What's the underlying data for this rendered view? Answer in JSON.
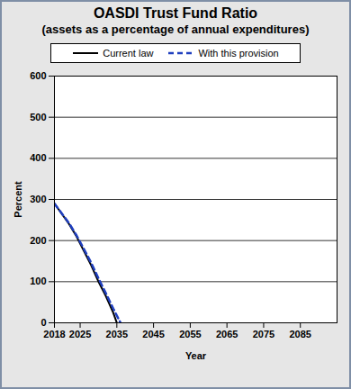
{
  "chart_data": {
    "type": "line",
    "title": "OASDI Trust Fund Ratio",
    "subtitle": "(assets as a percentage of annual expenditures)",
    "x_label": "Year",
    "y_label": "Percent",
    "xlim": [
      2018,
      2095
    ],
    "xticks": [
      2018,
      2025,
      2035,
      2045,
      2055,
      2065,
      2075,
      2085
    ],
    "ylim": [
      0,
      600
    ],
    "yticks": [
      0,
      100,
      200,
      300,
      400,
      500,
      600
    ],
    "grid": true,
    "legend": "top",
    "series": [
      {
        "name": "Current law",
        "color": "#000000",
        "line_style": "solid",
        "x": [
          2018,
          2020,
          2022,
          2024,
          2026,
          2028,
          2030,
          2032,
          2034,
          2035
        ],
        "values": [
          290,
          265,
          240,
          210,
          175,
          140,
          100,
          65,
          25,
          0
        ]
      },
      {
        "name": "With this provision",
        "color": "#1f3fbf",
        "line_style": "dashed",
        "x": [
          2018,
          2020,
          2022,
          2024,
          2026,
          2028,
          2030,
          2032,
          2034,
          2036
        ],
        "values": [
          290,
          266,
          242,
          213,
          180,
          146,
          108,
          72,
          35,
          0
        ]
      }
    ]
  }
}
